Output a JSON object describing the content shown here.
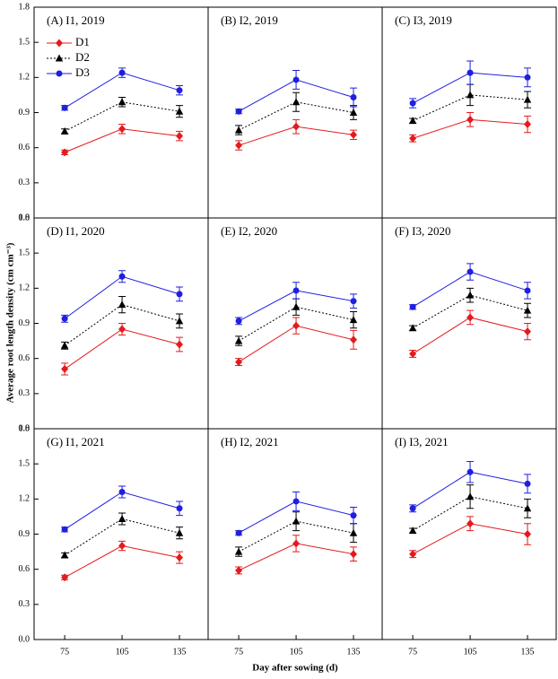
{
  "ylabel": "Average root length density (cm cm⁻³)",
  "xlabel": "Day after sowing (d)",
  "chart_data": [
    {
      "type": "line",
      "title": "(A) I1, 2019",
      "x": [
        75,
        105,
        135
      ],
      "xlim": [
        59,
        150
      ],
      "ylim": [
        0,
        1.8
      ],
      "yticks": [
        {
          "value": 0,
          "label": "0.0"
        },
        0.3,
        0.6,
        0.9,
        1.2,
        1.5,
        1.8
      ],
      "legend": "upper left",
      "series": [
        {
          "name": "D1",
          "color": "#e41a1c",
          "marker": "diamond",
          "dash": "solid",
          "values": [
            0.56,
            0.76,
            0.7
          ],
          "errors": [
            0.02,
            0.04,
            0.04
          ]
        },
        {
          "name": "D2",
          "color": "#000000",
          "marker": "triangle",
          "dash": "dotted",
          "values": [
            0.74,
            0.99,
            0.91
          ],
          "errors": [
            0.02,
            0.04,
            0.05
          ]
        },
        {
          "name": "D3",
          "color": "#1f1fe0",
          "marker": "circle",
          "dash": "solid",
          "values": [
            0.94,
            1.24,
            1.09
          ],
          "errors": [
            0.02,
            0.04,
            0.04
          ]
        }
      ]
    },
    {
      "type": "line",
      "title": "(B) I2, 2019",
      "x": [
        75,
        105,
        135
      ],
      "xlim": [
        59,
        150
      ],
      "ylim": [
        0,
        1.8
      ],
      "series": [
        {
          "color": "#e41a1c",
          "marker": "diamond",
          "dash": "solid",
          "values": [
            0.62,
            0.78,
            0.71
          ],
          "errors": [
            0.04,
            0.06,
            0.04
          ]
        },
        {
          "color": "#000000",
          "marker": "triangle",
          "dash": "dotted",
          "values": [
            0.75,
            0.99,
            0.9
          ],
          "errors": [
            0.04,
            0.08,
            0.06
          ]
        },
        {
          "color": "#1f1fe0",
          "marker": "circle",
          "dash": "solid",
          "values": [
            0.91,
            1.18,
            1.03
          ],
          "errors": [
            0.02,
            0.08,
            0.08
          ]
        }
      ]
    },
    {
      "type": "line",
      "title": "(C) I3, 2019",
      "x": [
        75,
        105,
        135
      ],
      "xlim": [
        59,
        150
      ],
      "ylim": [
        0,
        1.8
      ],
      "series": [
        {
          "color": "#e41a1c",
          "marker": "diamond",
          "dash": "solid",
          "values": [
            0.68,
            0.84,
            0.8
          ],
          "errors": [
            0.03,
            0.06,
            0.07
          ]
        },
        {
          "color": "#000000",
          "marker": "triangle",
          "dash": "dotted",
          "values": [
            0.83,
            1.05,
            1.01
          ],
          "errors": [
            0.02,
            0.09,
            0.07
          ]
        },
        {
          "color": "#1f1fe0",
          "marker": "circle",
          "dash": "solid",
          "values": [
            0.98,
            1.24,
            1.2
          ],
          "errors": [
            0.04,
            0.1,
            0.08
          ]
        }
      ]
    },
    {
      "type": "line",
      "title": "(D) I1, 2020",
      "x": [
        75,
        105,
        135
      ],
      "xlim": [
        59,
        150
      ],
      "ylim": [
        0,
        1.8
      ],
      "yticks": [
        {
          "value": 0,
          "label": "0.0"
        },
        0.3,
        0.6,
        0.9,
        1.2,
        1.5,
        1.8
      ],
      "series": [
        {
          "color": "#e41a1c",
          "marker": "diamond",
          "dash": "solid",
          "values": [
            0.51,
            0.85,
            0.72
          ],
          "errors": [
            0.05,
            0.05,
            0.06
          ]
        },
        {
          "color": "#000000",
          "marker": "triangle",
          "dash": "dotted",
          "values": [
            0.71,
            1.06,
            0.92
          ],
          "errors": [
            0.03,
            0.07,
            0.06
          ]
        },
        {
          "color": "#1f1fe0",
          "marker": "circle",
          "dash": "solid",
          "values": [
            0.94,
            1.3,
            1.15
          ],
          "errors": [
            0.03,
            0.05,
            0.06
          ]
        }
      ]
    },
    {
      "type": "line",
      "title": "(E) I2, 2020",
      "x": [
        75,
        105,
        135
      ],
      "xlim": [
        59,
        150
      ],
      "ylim": [
        0,
        1.8
      ],
      "series": [
        {
          "color": "#e41a1c",
          "marker": "diamond",
          "dash": "solid",
          "values": [
            0.57,
            0.88,
            0.76
          ],
          "errors": [
            0.03,
            0.07,
            0.08
          ]
        },
        {
          "color": "#000000",
          "marker": "triangle",
          "dash": "dotted",
          "values": [
            0.75,
            1.04,
            0.93
          ],
          "errors": [
            0.04,
            0.07,
            0.07
          ]
        },
        {
          "color": "#1f1fe0",
          "marker": "circle",
          "dash": "solid",
          "values": [
            0.92,
            1.18,
            1.09
          ],
          "errors": [
            0.03,
            0.07,
            0.06
          ]
        }
      ]
    },
    {
      "type": "line",
      "title": "(F) I3, 2020",
      "x": [
        75,
        105,
        135
      ],
      "xlim": [
        59,
        150
      ],
      "ylim": [
        0,
        1.8
      ],
      "series": [
        {
          "color": "#e41a1c",
          "marker": "diamond",
          "dash": "solid",
          "values": [
            0.64,
            0.95,
            0.83
          ],
          "errors": [
            0.03,
            0.06,
            0.07
          ]
        },
        {
          "color": "#000000",
          "marker": "triangle",
          "dash": "dotted",
          "values": [
            0.86,
            1.14,
            1.01
          ],
          "errors": [
            0.02,
            0.06,
            0.06
          ]
        },
        {
          "color": "#1f1fe0",
          "marker": "circle",
          "dash": "solid",
          "values": [
            1.04,
            1.34,
            1.18
          ],
          "errors": [
            0.02,
            0.07,
            0.07
          ]
        }
      ]
    },
    {
      "type": "line",
      "title": "(G) I1, 2021",
      "x": [
        75,
        105,
        135
      ],
      "xlim": [
        59,
        150
      ],
      "ylim": [
        0,
        1.8
      ],
      "yticks": [
        {
          "value": 0,
          "label": "0.0"
        },
        0.3,
        0.6,
        0.9,
        1.2,
        1.5,
        1.8
      ],
      "xticks": [
        75,
        105,
        135
      ],
      "series": [
        {
          "color": "#e41a1c",
          "marker": "diamond",
          "dash": "solid",
          "values": [
            0.53,
            0.8,
            0.7
          ],
          "errors": [
            0.02,
            0.04,
            0.05
          ]
        },
        {
          "color": "#000000",
          "marker": "triangle",
          "dash": "dotted",
          "values": [
            0.72,
            1.03,
            0.91
          ],
          "errors": [
            0.02,
            0.05,
            0.05
          ]
        },
        {
          "color": "#1f1fe0",
          "marker": "circle",
          "dash": "solid",
          "values": [
            0.94,
            1.26,
            1.12
          ],
          "errors": [
            0.02,
            0.05,
            0.06
          ]
        }
      ]
    },
    {
      "type": "line",
      "title": "(H) I2, 2021",
      "x": [
        75,
        105,
        135
      ],
      "xlim": [
        59,
        150
      ],
      "ylim": [
        0,
        1.8
      ],
      "xticks": [
        75,
        105,
        135
      ],
      "series": [
        {
          "color": "#e41a1c",
          "marker": "diamond",
          "dash": "solid",
          "values": [
            0.59,
            0.82,
            0.73
          ],
          "errors": [
            0.03,
            0.07,
            0.06
          ]
        },
        {
          "color": "#000000",
          "marker": "triangle",
          "dash": "dotted",
          "values": [
            0.75,
            1.01,
            0.91
          ],
          "errors": [
            0.04,
            0.08,
            0.08
          ]
        },
        {
          "color": "#1f1fe0",
          "marker": "circle",
          "dash": "solid",
          "values": [
            0.91,
            1.18,
            1.06
          ],
          "errors": [
            0.02,
            0.08,
            0.07
          ]
        }
      ]
    },
    {
      "type": "line",
      "title": "(I) I3, 2021",
      "x": [
        75,
        105,
        135
      ],
      "xlim": [
        59,
        150
      ],
      "ylim": [
        0,
        1.8
      ],
      "xticks": [
        75,
        105,
        135
      ],
      "series": [
        {
          "color": "#e41a1c",
          "marker": "diamond",
          "dash": "solid",
          "values": [
            0.73,
            0.99,
            0.9
          ],
          "errors": [
            0.03,
            0.06,
            0.09
          ]
        },
        {
          "color": "#000000",
          "marker": "triangle",
          "dash": "dotted",
          "values": [
            0.93,
            1.22,
            1.12
          ],
          "errors": [
            0.02,
            0.1,
            0.08
          ]
        },
        {
          "color": "#1f1fe0",
          "marker": "circle",
          "dash": "solid",
          "values": [
            1.12,
            1.43,
            1.33
          ],
          "errors": [
            0.03,
            0.09,
            0.08
          ]
        }
      ]
    }
  ]
}
